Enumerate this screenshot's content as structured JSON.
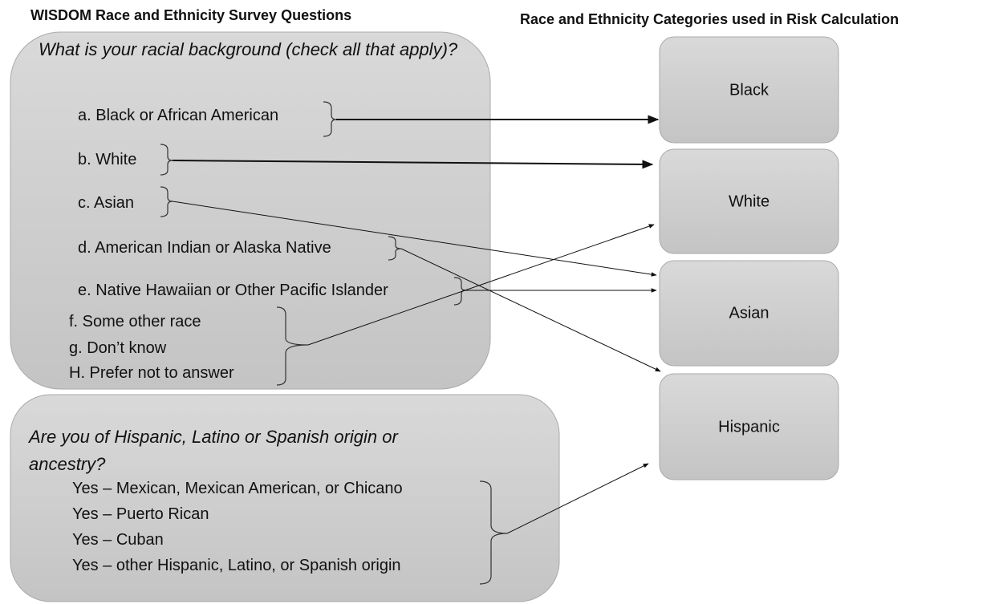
{
  "left_title": "WISDOM Race and Ethnicity Survey Questions",
  "right_title": "Race and Ethnicity Categories used in Risk Calculation",
  "question1": {
    "text": "What is your racial background (check all that apply)?",
    "options": [
      "a. Black or African American",
      "b. White",
      "c. Asian",
      "d. American Indian or Alaska Native",
      "e. Native Hawaiian or Other Pacific Islander",
      "f.  Some other race",
      "g. Don’t know",
      "H. Prefer not to answer"
    ]
  },
  "question2": {
    "text": "Are you of Hispanic, Latino or Spanish origin or ancestry?",
    "options": [
      "Yes – Mexican, Mexican American, or Chicano",
      "Yes – Puerto Rican",
      "Yes – Cuban",
      "Yes – other Hispanic, Latino, or Spanish origin"
    ]
  },
  "categories": [
    "Black",
    "White",
    "Asian",
    "Hispanic"
  ]
}
